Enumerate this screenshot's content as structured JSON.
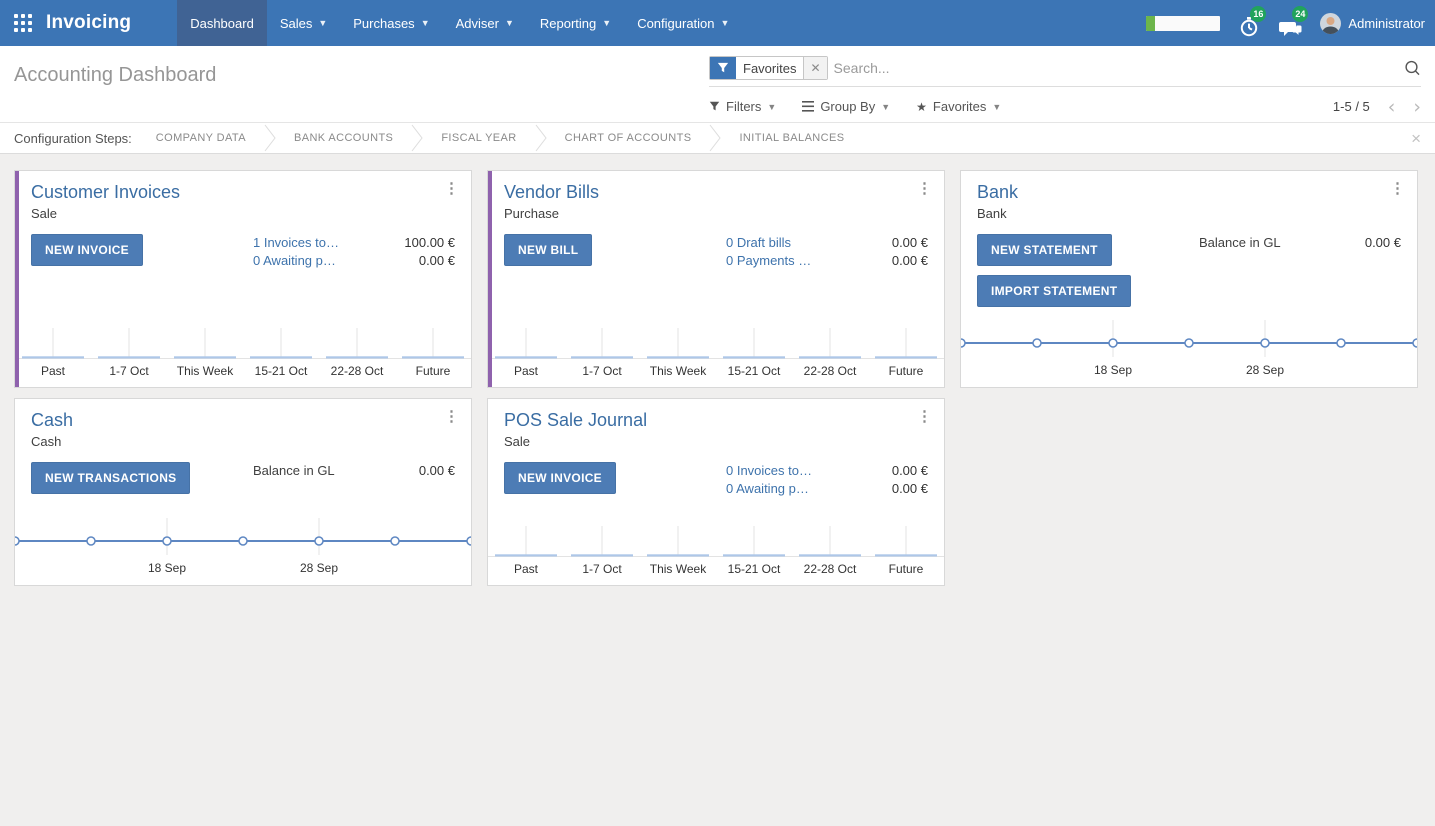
{
  "theme": {
    "navbar_bg": "#3c75b5",
    "navbar_active_bg": "#406394",
    "accent_purple": "#8f62ad",
    "button_blue": "#4d7cb5",
    "title_blue": "#3a6da3",
    "link_blue": "#3e73ac",
    "badge_green": "#21a35c",
    "progress_green": "#6cb54b",
    "chart_line_blue": "#5e87c2",
    "chart_bar_blue": "#aec7e8"
  },
  "navbar": {
    "brand": "Invoicing",
    "menus": [
      {
        "label": "Dashboard"
      },
      {
        "label": "Sales"
      },
      {
        "label": "Purchases"
      },
      {
        "label": "Adviser"
      },
      {
        "label": "Reporting"
      },
      {
        "label": "Configuration"
      }
    ],
    "systray": {
      "progress_percent": 12,
      "activities_badge": "16",
      "messages_badge": "24",
      "user_name": "Administrator"
    }
  },
  "control_panel": {
    "title": "Accounting Dashboard",
    "search": {
      "facet_label": "Favorites",
      "placeholder": "Search..."
    },
    "filters_label": "Filters",
    "group_by_label": "Group By",
    "favorites_label": "Favorites",
    "pager": "1-5 / 5"
  },
  "config_bar": {
    "label": "Configuration Steps:",
    "steps": [
      "COMPANY DATA",
      "BANK ACCOUNTS",
      "FISCAL YEAR",
      "CHART OF ACCOUNTS",
      "INITIAL BALANCES"
    ]
  },
  "cards": [
    {
      "title": "Customer Invoices",
      "subtitle": "Sale",
      "buttons": [
        "NEW INVOICE"
      ],
      "rows": [
        {
          "label": "1 Invoices to…",
          "amount": "100.00 €"
        },
        {
          "label": "0 Awaiting p…",
          "amount": "0.00 €"
        }
      ],
      "chart": {
        "type": "bar",
        "categories": [
          "Past",
          "1-7 Oct",
          "This Week",
          "15-21 Oct",
          "22-28 Oct",
          "Future"
        ],
        "values": [
          0,
          0,
          0,
          0,
          0,
          0
        ]
      }
    },
    {
      "title": "Vendor Bills",
      "subtitle": "Purchase",
      "buttons": [
        "NEW BILL"
      ],
      "rows": [
        {
          "label": "0 Draft bills",
          "amount": "0.00 €"
        },
        {
          "label": "0 Payments …",
          "amount": "0.00 €"
        }
      ],
      "chart": {
        "type": "bar",
        "categories": [
          "Past",
          "1-7 Oct",
          "This Week",
          "15-21 Oct",
          "22-28 Oct",
          "Future"
        ],
        "values": [
          0,
          0,
          0,
          0,
          0,
          0
        ]
      }
    },
    {
      "title": "Bank",
      "subtitle": "Bank",
      "buttons": [
        "NEW STATEMENT",
        "IMPORT STATEMENT"
      ],
      "rows": [
        {
          "label": "Balance in GL",
          "amount": "0.00 €"
        }
      ],
      "chart": {
        "type": "line",
        "values": [
          0,
          0,
          0,
          0,
          0,
          0,
          0
        ],
        "ticks": [
          {
            "index": 2,
            "label": "18 Sep"
          },
          {
            "index": 4,
            "label": "28 Sep"
          }
        ]
      }
    },
    {
      "title": "Cash",
      "subtitle": "Cash",
      "buttons": [
        "NEW TRANSACTIONS"
      ],
      "rows": [
        {
          "label": "Balance in GL",
          "amount": "0.00 €"
        }
      ],
      "chart": {
        "type": "line",
        "values": [
          0,
          0,
          0,
          0,
          0,
          0,
          0
        ],
        "ticks": [
          {
            "index": 2,
            "label": "18 Sep"
          },
          {
            "index": 4,
            "label": "28 Sep"
          }
        ]
      }
    },
    {
      "title": "POS Sale Journal",
      "subtitle": "Sale",
      "buttons": [
        "NEW INVOICE"
      ],
      "rows": [
        {
          "label": "0 Invoices to…",
          "amount": "0.00 €"
        },
        {
          "label": "0 Awaiting p…",
          "amount": "0.00 €"
        }
      ],
      "chart": {
        "type": "bar",
        "categories": [
          "Past",
          "1-7 Oct",
          "This Week",
          "15-21 Oct",
          "22-28 Oct",
          "Future"
        ],
        "values": [
          0,
          0,
          0,
          0,
          0,
          0
        ]
      }
    }
  ]
}
